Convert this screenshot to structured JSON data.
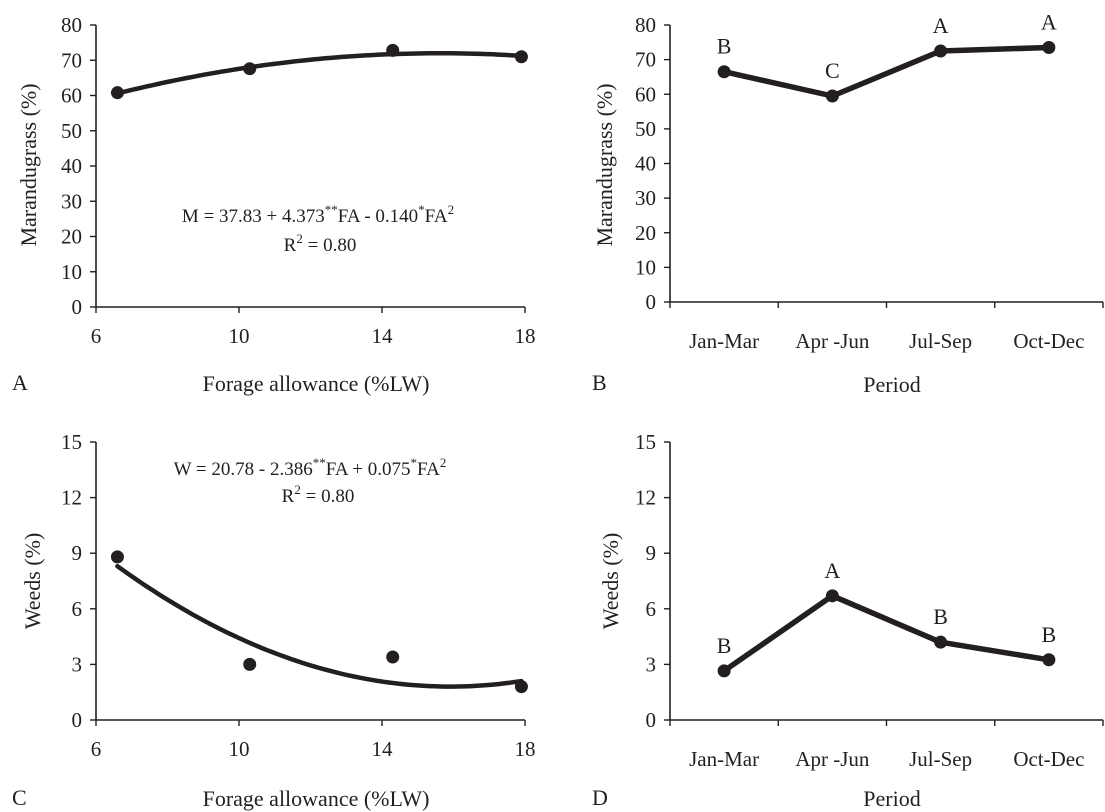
{
  "chart_data": [
    {
      "panel": "A",
      "type": "scatter",
      "xlabel": "Forage allowance  (%LW)",
      "ylabel": "Marandugrass (%)",
      "xlim": [
        6,
        18
      ],
      "ylim": [
        0,
        80
      ],
      "xticks": [
        "6",
        "10",
        "14",
        "18"
      ],
      "yticks": [
        "0",
        "10",
        "20",
        "30",
        "40",
        "50",
        "60",
        "70",
        "80"
      ],
      "points": [
        {
          "x": 6.6,
          "y": 60.8
        },
        {
          "x": 10.3,
          "y": 67.6
        },
        {
          "x": 14.3,
          "y": 72.8
        },
        {
          "x": 17.9,
          "y": 71.0
        }
      ],
      "fit": {
        "intercept": 37.83,
        "b1": 4.373,
        "b2": -0.14,
        "xrange": [
          6.6,
          17.9
        ]
      },
      "equation": {
        "lhs": "M = 37.83 + 4.373",
        "sig1": "**",
        "mid": "FA - 0.140",
        "sig2": "*",
        "tail": "FA",
        "sq": "2"
      },
      "r2": {
        "pre": "R",
        "sq": "2",
        "post": " = 0.80"
      }
    },
    {
      "panel": "B",
      "type": "line",
      "xlabel": "Period",
      "ylabel": "Marandugrass (%)",
      "ylim": [
        0,
        80
      ],
      "categories": [
        "Jan-Mar",
        "Apr -Jun",
        "Jul-Sep",
        "Oct-Dec"
      ],
      "yticks": [
        "0",
        "10",
        "20",
        "30",
        "40",
        "50",
        "60",
        "70",
        "80"
      ],
      "values": [
        66.5,
        59.5,
        72.5,
        73.5
      ],
      "letters": [
        "B",
        "C",
        "A",
        "A"
      ]
    },
    {
      "panel": "C",
      "type": "scatter",
      "xlabel": "Forage allowance  (%LW)",
      "ylabel": "Weeds (%)",
      "xlim": [
        6,
        18
      ],
      "ylim": [
        0,
        15
      ],
      "xticks": [
        "6",
        "10",
        "14",
        "18"
      ],
      "yticks": [
        "0",
        "3",
        "6",
        "9",
        "12",
        "15"
      ],
      "points": [
        {
          "x": 6.6,
          "y": 8.8
        },
        {
          "x": 10.3,
          "y": 3.0
        },
        {
          "x": 14.3,
          "y": 3.4
        },
        {
          "x": 17.9,
          "y": 1.8
        }
      ],
      "fit": {
        "intercept": 20.78,
        "b1": -2.386,
        "b2": 0.075,
        "xrange": [
          6.6,
          17.9
        ]
      },
      "equation": {
        "lhs": "W = 20.78 - 2.386",
        "sig1": "**",
        "mid": "FA + 0.075",
        "sig2": "*",
        "tail": "FA",
        "sq": "2"
      },
      "r2": {
        "pre": "R",
        "sq": "2",
        "post": " = 0.80"
      }
    },
    {
      "panel": "D",
      "type": "line",
      "xlabel": "Period",
      "ylabel": "Weeds (%)",
      "ylim": [
        0,
        15
      ],
      "categories": [
        "Jan-Mar",
        "Apr -Jun",
        "Jul-Sep",
        "Oct-Dec"
      ],
      "yticks": [
        "0",
        "3",
        "6",
        "9",
        "12",
        "15"
      ],
      "values": [
        2.65,
        6.7,
        4.2,
        3.25
      ],
      "letters": [
        "B",
        "A",
        "B",
        "B"
      ]
    }
  ],
  "panel_labels": [
    "A",
    "B",
    "C",
    "D"
  ]
}
